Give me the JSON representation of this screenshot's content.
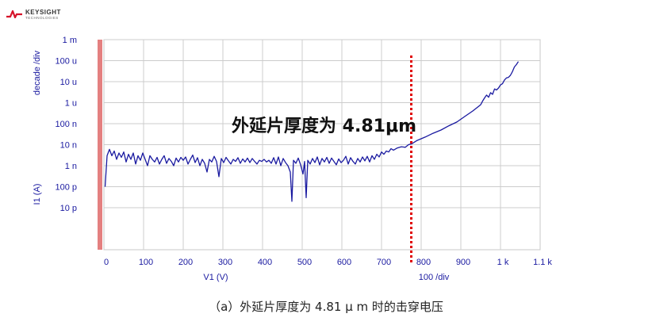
{
  "logo": {
    "brand": "KEYSIGHT",
    "sub": "TECHNOLOGIES",
    "mark_color": "#d6132a"
  },
  "caption": "（a）外延片厚度为 4.81 μ m 时的击穿电压",
  "chart_data": {
    "type": "line",
    "xlabel": "V1 (V)",
    "x_scale_note": "100  /div",
    "ylabel": "I1 (A)",
    "y_scale_note": "decade /div",
    "y_scale": "log",
    "xlim": [
      0,
      1100
    ],
    "ylim": [
      1e-13,
      0.001
    ],
    "x_ticks": [
      {
        "v": 0,
        "label": "0"
      },
      {
        "v": 100,
        "label": "100"
      },
      {
        "v": 200,
        "label": "200"
      },
      {
        "v": 300,
        "label": "300"
      },
      {
        "v": 400,
        "label": "400"
      },
      {
        "v": 500,
        "label": "500"
      },
      {
        "v": 600,
        "label": "600"
      },
      {
        "v": 700,
        "label": "700"
      },
      {
        "v": 800,
        "label": "800"
      },
      {
        "v": 900,
        "label": "900"
      },
      {
        "v": 1000,
        "label": "1 k"
      },
      {
        "v": 1100,
        "label": "1.1 k"
      }
    ],
    "y_ticks": [
      {
        "v": 0.001,
        "label": "1 m"
      },
      {
        "v": 0.0001,
        "label": "100 u"
      },
      {
        "v": 1e-05,
        "label": "10 u"
      },
      {
        "v": 1e-06,
        "label": "1 u"
      },
      {
        "v": 1e-07,
        "label": "100 n"
      },
      {
        "v": 1e-08,
        "label": "10 n"
      },
      {
        "v": 1e-09,
        "label": "1 n"
      },
      {
        "v": 1e-10,
        "label": "100 p"
      },
      {
        "v": 1e-11,
        "label": "10 p"
      }
    ],
    "grid": true,
    "annotation": {
      "text": "外延片厚度为 4.81μm",
      "breakdown_v": 775
    },
    "series": [
      {
        "color": "#1a1aa0",
        "points": [
          [
            3,
            1e-10
          ],
          [
            8,
            3e-09
          ],
          [
            14,
            6e-09
          ],
          [
            20,
            3e-09
          ],
          [
            26,
            5e-09
          ],
          [
            32,
            2e-09
          ],
          [
            38,
            4e-09
          ],
          [
            44,
            2.5e-09
          ],
          [
            50,
            4.5e-09
          ],
          [
            56,
            1.5e-09
          ],
          [
            62,
            3.5e-09
          ],
          [
            68,
            2e-09
          ],
          [
            74,
            4e-09
          ],
          [
            80,
            1.2e-09
          ],
          [
            86,
            3e-09
          ],
          [
            92,
            1.8e-09
          ],
          [
            98,
            4e-09
          ],
          [
            104,
            2e-09
          ],
          [
            110,
            1e-09
          ],
          [
            116,
            3e-09
          ],
          [
            122,
            2e-09
          ],
          [
            128,
            1.5e-09
          ],
          [
            134,
            2.5e-09
          ],
          [
            140,
            1.2e-09
          ],
          [
            146,
            2e-09
          ],
          [
            152,
            3e-09
          ],
          [
            158,
            1.3e-09
          ],
          [
            164,
            2.2e-09
          ],
          [
            170,
            1.6e-09
          ],
          [
            176,
            1e-09
          ],
          [
            182,
            2.3e-09
          ],
          [
            188,
            1.5e-09
          ],
          [
            194,
            2.5e-09
          ],
          [
            200,
            1.8e-09
          ],
          [
            206,
            2.6e-09
          ],
          [
            212,
            1.2e-09
          ],
          [
            218,
            2e-09
          ],
          [
            224,
            3.2e-09
          ],
          [
            230,
            1.4e-09
          ],
          [
            236,
            2.4e-09
          ],
          [
            242,
            1e-09
          ],
          [
            248,
            2e-09
          ],
          [
            254,
            1.3e-09
          ],
          [
            260,
            5e-10
          ],
          [
            266,
            2e-09
          ],
          [
            272,
            1.5e-09
          ],
          [
            278,
            2.8e-09
          ],
          [
            284,
            1.6e-09
          ],
          [
            290,
            3e-10
          ],
          [
            296,
            2.2e-09
          ],
          [
            302,
            1.4e-09
          ],
          [
            308,
            2.5e-09
          ],
          [
            314,
            1.7e-09
          ],
          [
            320,
            1.2e-09
          ],
          [
            326,
            2e-09
          ],
          [
            332,
            1.6e-09
          ],
          [
            338,
            2.4e-09
          ],
          [
            344,
            1.3e-09
          ],
          [
            350,
            2.1e-09
          ],
          [
            356,
            1.5e-09
          ],
          [
            362,
            2.3e-09
          ],
          [
            368,
            1.4e-09
          ],
          [
            374,
            2.2e-09
          ],
          [
            380,
            1.6e-09
          ],
          [
            386,
            1.2e-09
          ],
          [
            392,
            1.8e-09
          ],
          [
            398,
            1.6e-09
          ],
          [
            404,
            2e-09
          ],
          [
            410,
            1.5e-09
          ],
          [
            416,
            1.8e-09
          ],
          [
            422,
            1.3e-09
          ],
          [
            428,
            2.4e-09
          ],
          [
            434,
            1.2e-09
          ],
          [
            440,
            2.6e-09
          ],
          [
            446,
            1e-09
          ],
          [
            452,
            2.2e-09
          ],
          [
            458,
            1.4e-09
          ],
          [
            464,
            1e-09
          ],
          [
            470,
            5e-10
          ],
          [
            474,
            2e-11
          ],
          [
            478,
            1.8e-09
          ],
          [
            484,
            1.3e-09
          ],
          [
            490,
            2.3e-09
          ],
          [
            496,
            1.1e-09
          ],
          [
            502,
            4e-10
          ],
          [
            506,
            1.6e-09
          ],
          [
            510,
            3e-11
          ],
          [
            514,
            1.8e-09
          ],
          [
            520,
            1.2e-09
          ],
          [
            526,
            2.2e-09
          ],
          [
            532,
            1.4e-09
          ],
          [
            538,
            2.6e-09
          ],
          [
            544,
            1.1e-09
          ],
          [
            550,
            2.2e-09
          ],
          [
            556,
            1.5e-09
          ],
          [
            562,
            2.5e-09
          ],
          [
            568,
            1.3e-09
          ],
          [
            574,
            2.3e-09
          ],
          [
            580,
            1.6e-09
          ],
          [
            586,
            1.1e-09
          ],
          [
            592,
            2.1e-09
          ],
          [
            598,
            1.4e-09
          ],
          [
            604,
            1.8e-09
          ],
          [
            610,
            2.8e-09
          ],
          [
            616,
            1.2e-09
          ],
          [
            622,
            2.4e-09
          ],
          [
            628,
            1.6e-09
          ],
          [
            634,
            1.2e-09
          ],
          [
            640,
            2.2e-09
          ],
          [
            646,
            1.5e-09
          ],
          [
            652,
            2.6e-09
          ],
          [
            658,
            1.7e-09
          ],
          [
            664,
            2.8e-09
          ],
          [
            670,
            1.5e-09
          ],
          [
            676,
            3e-09
          ],
          [
            682,
            2e-09
          ],
          [
            688,
            3.5e-09
          ],
          [
            694,
            2.6e-09
          ],
          [
            700,
            4.5e-09
          ],
          [
            706,
            3.5e-09
          ],
          [
            712,
            5e-09
          ],
          [
            718,
            4.5e-09
          ],
          [
            724,
            6.5e-09
          ],
          [
            730,
            5.5e-09
          ],
          [
            740,
            7e-09
          ],
          [
            750,
            8e-09
          ],
          [
            760,
            7.5e-09
          ],
          [
            768,
            1e-08
          ],
          [
            776,
            1.1e-08
          ],
          [
            790,
            1.6e-08
          ],
          [
            810,
            2.3e-08
          ],
          [
            830,
            3.5e-08
          ],
          [
            850,
            5e-08
          ],
          [
            870,
            8e-08
          ],
          [
            890,
            1.2e-07
          ],
          [
            910,
            2.2e-07
          ],
          [
            930,
            4e-07
          ],
          [
            950,
            8e-07
          ],
          [
            955,
            1.2e-06
          ],
          [
            960,
            1.7e-06
          ],
          [
            965,
            2.3e-06
          ],
          [
            970,
            1.8e-06
          ],
          [
            975,
            3e-06
          ],
          [
            980,
            2.5e-06
          ],
          [
            985,
            4.5e-06
          ],
          [
            990,
            4e-06
          ],
          [
            995,
            5e-06
          ],
          [
            1000,
            7e-06
          ],
          [
            1005,
            8e-06
          ],
          [
            1010,
            1.2e-05
          ],
          [
            1015,
            1.5e-05
          ],
          [
            1020,
            1.6e-05
          ],
          [
            1025,
            2e-05
          ],
          [
            1030,
            3e-05
          ],
          [
            1035,
            5e-05
          ],
          [
            1040,
            6.5e-05
          ],
          [
            1045,
            9e-05
          ]
        ]
      }
    ]
  }
}
